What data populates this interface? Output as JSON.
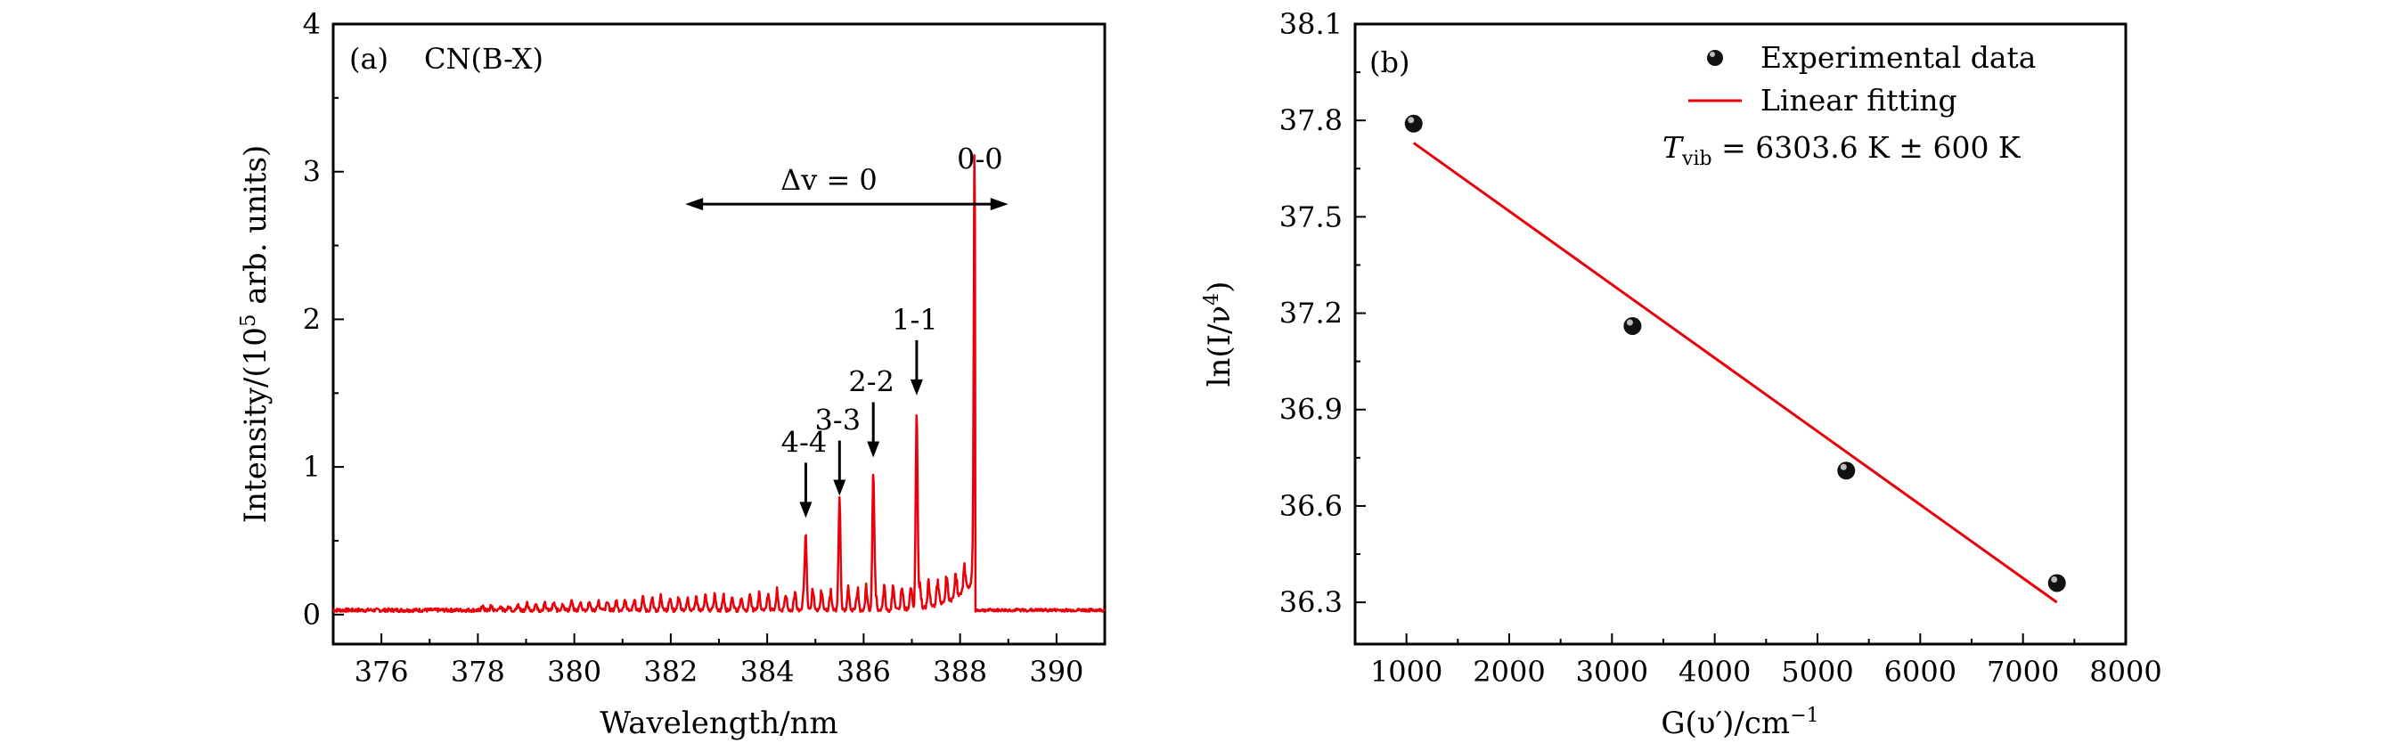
{
  "chart_data": [
    {
      "panel": "(a)",
      "type": "line",
      "title": "CN(B-X)",
      "xlabel": "Wavelength/nm",
      "ylabel": "Intensity/(10",
      "ylabel_sup": "5",
      "ylabel_tail": " arb. units)",
      "xlim": [
        375,
        391
      ],
      "ylim": [
        -0.2,
        4
      ],
      "xticks": [
        376,
        378,
        380,
        382,
        384,
        386,
        388,
        390
      ],
      "yticks": [
        0,
        1,
        2,
        3,
        4
      ],
      "grid": false,
      "line_color": "#e8000b",
      "peaks": [
        {
          "x": 384.8,
          "y": 0.57,
          "label": "4-4"
        },
        {
          "x": 385.5,
          "y": 0.72,
          "label": "3-3"
        },
        {
          "x": 386.2,
          "y": 0.98,
          "label": "2-2"
        },
        {
          "x": 387.1,
          "y": 1.4,
          "label": "1-1"
        },
        {
          "x": 388.3,
          "y": 2.9,
          "label": "0-0"
        }
      ],
      "band_arrow": {
        "x_start": 382.3,
        "x_end": 389.0,
        "y": 2.78,
        "label": "Δv = 0"
      }
    },
    {
      "panel": "(b)",
      "type": "scatter",
      "xlabel": "G(υ′)/cm",
      "xlabel_sup": "−1",
      "ylabel": "ln(I/ν",
      "ylabel_sup": "4",
      "ylabel_tail": ")",
      "xlim": [
        500,
        8000
      ],
      "ylim": [
        36.17,
        38.1
      ],
      "xticks": [
        1000,
        2000,
        3000,
        4000,
        5000,
        6000,
        7000,
        8000
      ],
      "yticks": [
        36.3,
        36.6,
        36.9,
        37.2,
        37.5,
        37.8,
        38.1
      ],
      "grid": false,
      "series": [
        {
          "name": "Experimental data",
          "kind": "scatter",
          "points": [
            {
              "x": 1070,
              "y": 37.79
            },
            {
              "x": 3200,
              "y": 37.16
            },
            {
              "x": 5280,
              "y": 36.71
            },
            {
              "x": 7330,
              "y": 36.36
            }
          ]
        },
        {
          "name": "Linear fitting",
          "kind": "line",
          "color": "#e8000b",
          "points": [
            {
              "x": 1070,
              "y": 37.73
            },
            {
              "x": 7330,
              "y": 36.3
            }
          ]
        }
      ],
      "legend_position": "top-right",
      "annotation_T": "T",
      "annotation_sub": "vib",
      "annotation_value": " = 6303.6 K ± 600 K"
    }
  ]
}
